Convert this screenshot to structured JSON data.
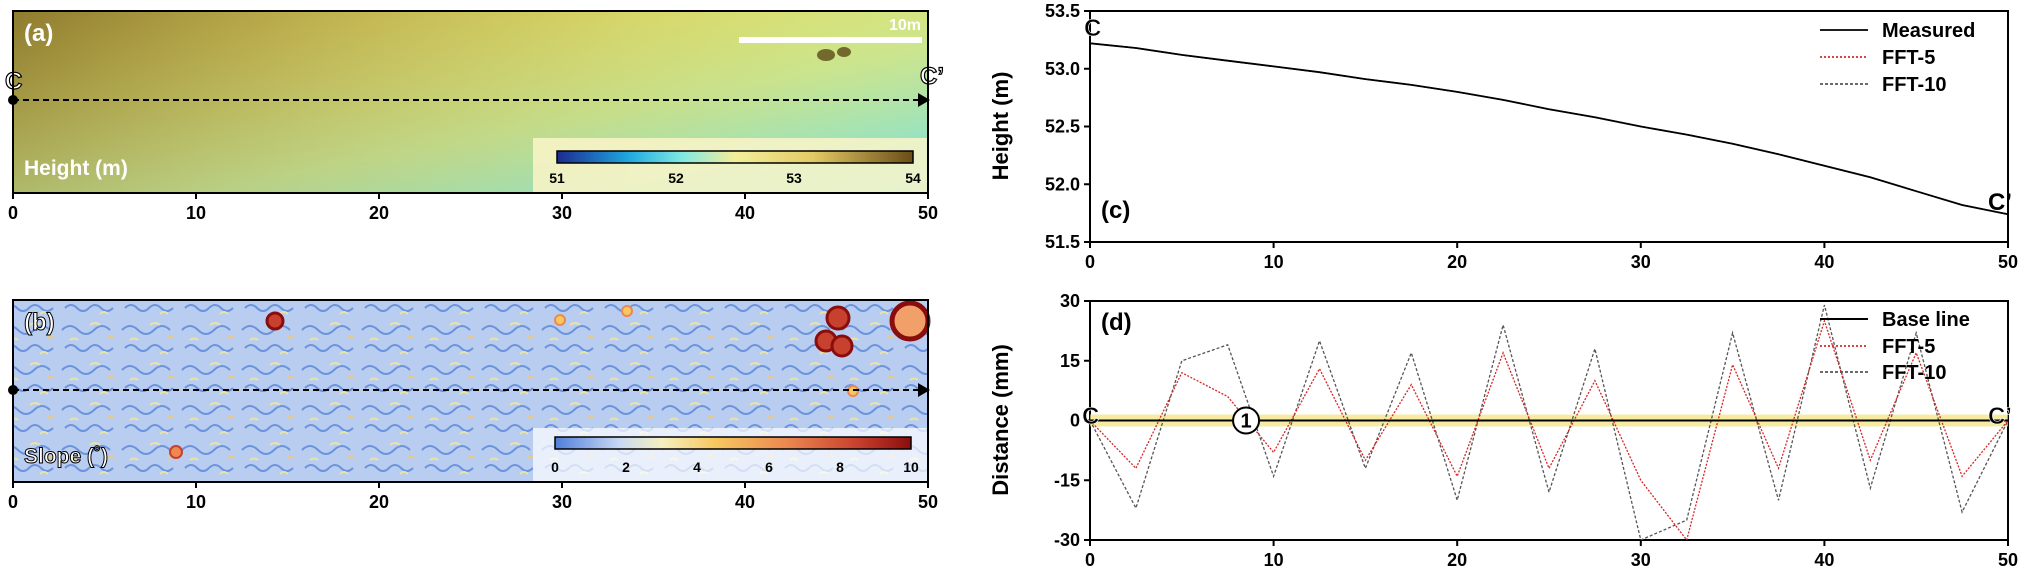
{
  "colors": {
    "measured": "#000000",
    "fft5": "#d62728",
    "fft10": "#555555",
    "baseline_band": "#f3e27a"
  },
  "panel_a": {
    "letter": "(a)",
    "scalebar_label": "10m",
    "colorbar_title": "Height (m)",
    "colorbar_ticks": [
      "51",
      "52",
      "53",
      "54"
    ],
    "x_ticks": [
      "0",
      "10",
      "20",
      "30",
      "40",
      "50"
    ],
    "start_label": "C",
    "end_label": "C’"
  },
  "panel_b": {
    "letter": "(b)",
    "colorbar_title": "Slope (˚)",
    "colorbar_ticks": [
      "0",
      "2",
      "4",
      "6",
      "8",
      "10"
    ],
    "x_ticks": [
      "0",
      "10",
      "20",
      "30",
      "40",
      "50"
    ]
  },
  "chart_data": [
    {
      "type": "line",
      "panel": "(c)",
      "ylabel": "Height (m)",
      "xlim": [
        0,
        50
      ],
      "ylim": [
        51.5,
        53.5
      ],
      "x_ticks": [
        "0",
        "10",
        "20",
        "30",
        "40",
        "50"
      ],
      "y_ticks": [
        "51.5",
        "52.0",
        "52.5",
        "53.0",
        "53.5"
      ],
      "start_label": "C",
      "end_label": "C’",
      "legend": [
        "Measured",
        "FFT-5",
        "FFT-10"
      ],
      "legend_position": "top-right",
      "x": [
        0,
        2.5,
        5,
        7.5,
        10,
        12.5,
        15,
        17.5,
        20,
        22.5,
        25,
        27.5,
        30,
        32.5,
        35,
        37.5,
        40,
        42.5,
        45,
        47.5,
        50
      ],
      "series": [
        {
          "name": "Measured",
          "values": [
            53.22,
            53.18,
            53.12,
            53.07,
            53.02,
            52.97,
            52.91,
            52.86,
            52.8,
            52.73,
            52.65,
            52.58,
            52.5,
            52.43,
            52.35,
            52.26,
            52.16,
            52.06,
            51.94,
            51.82,
            51.74
          ]
        },
        {
          "name": "FFT-5",
          "values": [
            53.22,
            53.18,
            53.12,
            53.07,
            53.02,
            52.97,
            52.91,
            52.86,
            52.8,
            52.73,
            52.65,
            52.58,
            52.5,
            52.43,
            52.35,
            52.26,
            52.16,
            52.06,
            51.94,
            51.82,
            51.74
          ]
        },
        {
          "name": "FFT-10",
          "values": [
            53.22,
            53.18,
            53.12,
            53.07,
            53.02,
            52.97,
            52.91,
            52.86,
            52.8,
            52.73,
            52.65,
            52.58,
            52.5,
            52.43,
            52.35,
            52.26,
            52.16,
            52.06,
            51.94,
            51.82,
            51.74
          ]
        }
      ]
    },
    {
      "type": "line",
      "panel": "(d)",
      "ylabel": "Distance (mm)",
      "xlim": [
        0,
        50
      ],
      "ylim": [
        -30,
        30
      ],
      "x_ticks": [
        "0",
        "10",
        "20",
        "30",
        "40",
        "50"
      ],
      "y_ticks": [
        "-30",
        "-15",
        "0",
        "15",
        "30"
      ],
      "start_label": "C",
      "end_label": "C’",
      "marker_label": "1",
      "marker_x": 8.5,
      "legend": [
        "Base line",
        "FFT-5",
        "FFT-10"
      ],
      "legend_position": "top-right",
      "series": [
        {
          "name": "Base line",
          "x": [
            0,
            50
          ],
          "values": [
            0,
            0
          ]
        },
        {
          "name": "FFT-5",
          "x": [
            0,
            2.5,
            5,
            7.5,
            10,
            12.5,
            15,
            17.5,
            20,
            22.5,
            25,
            27.5,
            30,
            32.5,
            35,
            37.5,
            40,
            42.5,
            45,
            47.5,
            50
          ],
          "values": [
            0,
            -12,
            12,
            6,
            -8,
            13,
            -10,
            9,
            -14,
            17,
            -12,
            10,
            -15,
            -30,
            14,
            -12,
            25,
            -10,
            17,
            -14,
            0
          ]
        },
        {
          "name": "FFT-10",
          "x": [
            0,
            2.5,
            5,
            7.5,
            10,
            12.5,
            15,
            17.5,
            20,
            22.5,
            25,
            27.5,
            30,
            32.5,
            35,
            37.5,
            40,
            42.5,
            45,
            47.5,
            50
          ],
          "values": [
            0,
            -22,
            15,
            19,
            -14,
            20,
            -12,
            17,
            -20,
            24,
            -18,
            18,
            -30,
            -25,
            22,
            -20,
            29,
            -17,
            22,
            -23,
            0
          ]
        }
      ]
    }
  ]
}
